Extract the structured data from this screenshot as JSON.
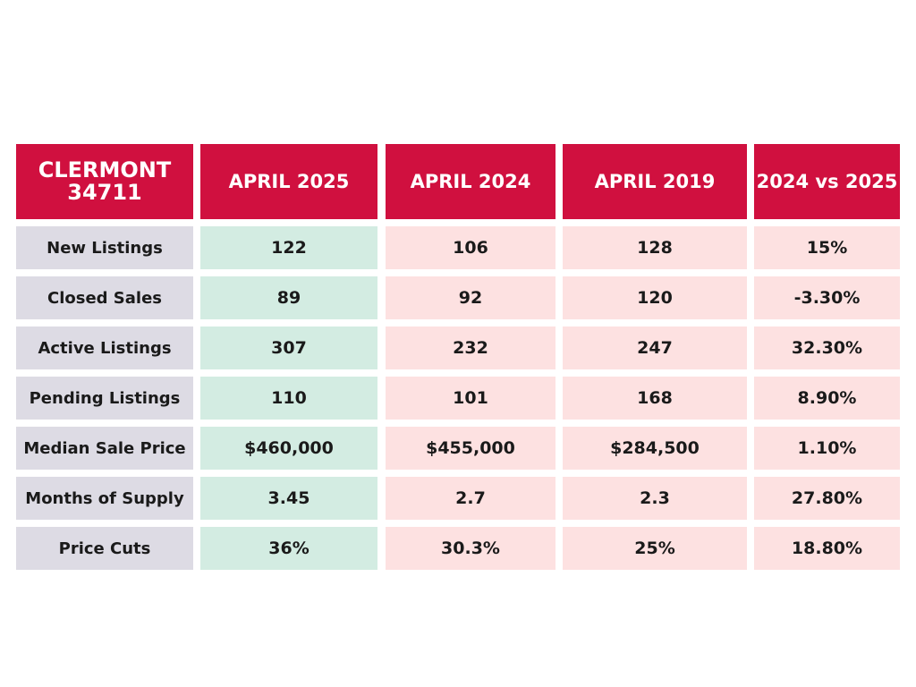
{
  "table": {
    "header": [
      "CLERMONT 34711",
      "APRIL 2025",
      "APRIL 2024",
      "APRIL 2019",
      "2024 vs 2025"
    ],
    "rows": [
      [
        "New Listings",
        "122",
        "106",
        "128",
        "15%"
      ],
      [
        "Closed Sales",
        "89",
        "92",
        "120",
        "-3.30%"
      ],
      [
        "Active Listings",
        "307",
        "232",
        "247",
        "32.30%"
      ],
      [
        "Pending Listings",
        "110",
        "101",
        "168",
        "8.90%"
      ],
      [
        "Median Sale Price",
        "$460,000",
        "$455,000",
        "$284,500",
        "1.10%"
      ],
      [
        "Months of Supply",
        "3.45",
        "2.7",
        "2.3",
        "27.80%"
      ],
      [
        "Price Cuts",
        "36%",
        "30.3%",
        "25%",
        "18.80%"
      ]
    ]
  }
}
